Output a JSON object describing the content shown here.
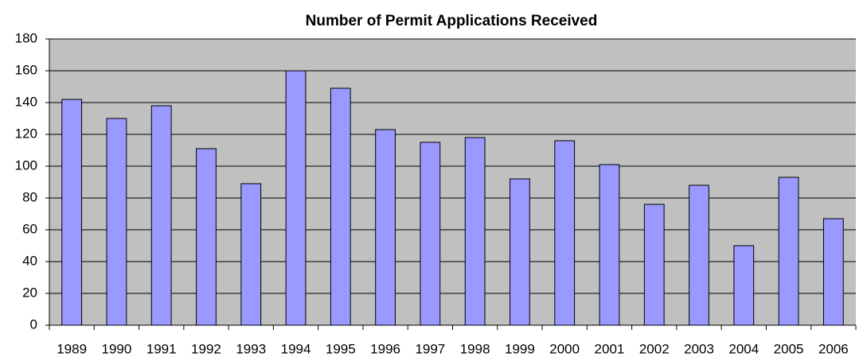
{
  "chart_data": {
    "type": "bar",
    "title": "Number of Permit Applications Received",
    "categories": [
      "1989",
      "1990",
      "1991",
      "1992",
      "1993",
      "1994",
      "1995",
      "1996",
      "1997",
      "1998",
      "1999",
      "2000",
      "2001",
      "2002",
      "2003",
      "2004",
      "2005",
      "2006"
    ],
    "values": [
      142,
      130,
      138,
      111,
      89,
      160,
      149,
      123,
      115,
      118,
      92,
      116,
      101,
      76,
      88,
      50,
      93,
      67
    ],
    "color": "#9999ff",
    "ylim": [
      0,
      180
    ],
    "yticks": [
      0,
      20,
      40,
      60,
      80,
      100,
      120,
      140,
      160,
      180
    ],
    "grid": true
  }
}
